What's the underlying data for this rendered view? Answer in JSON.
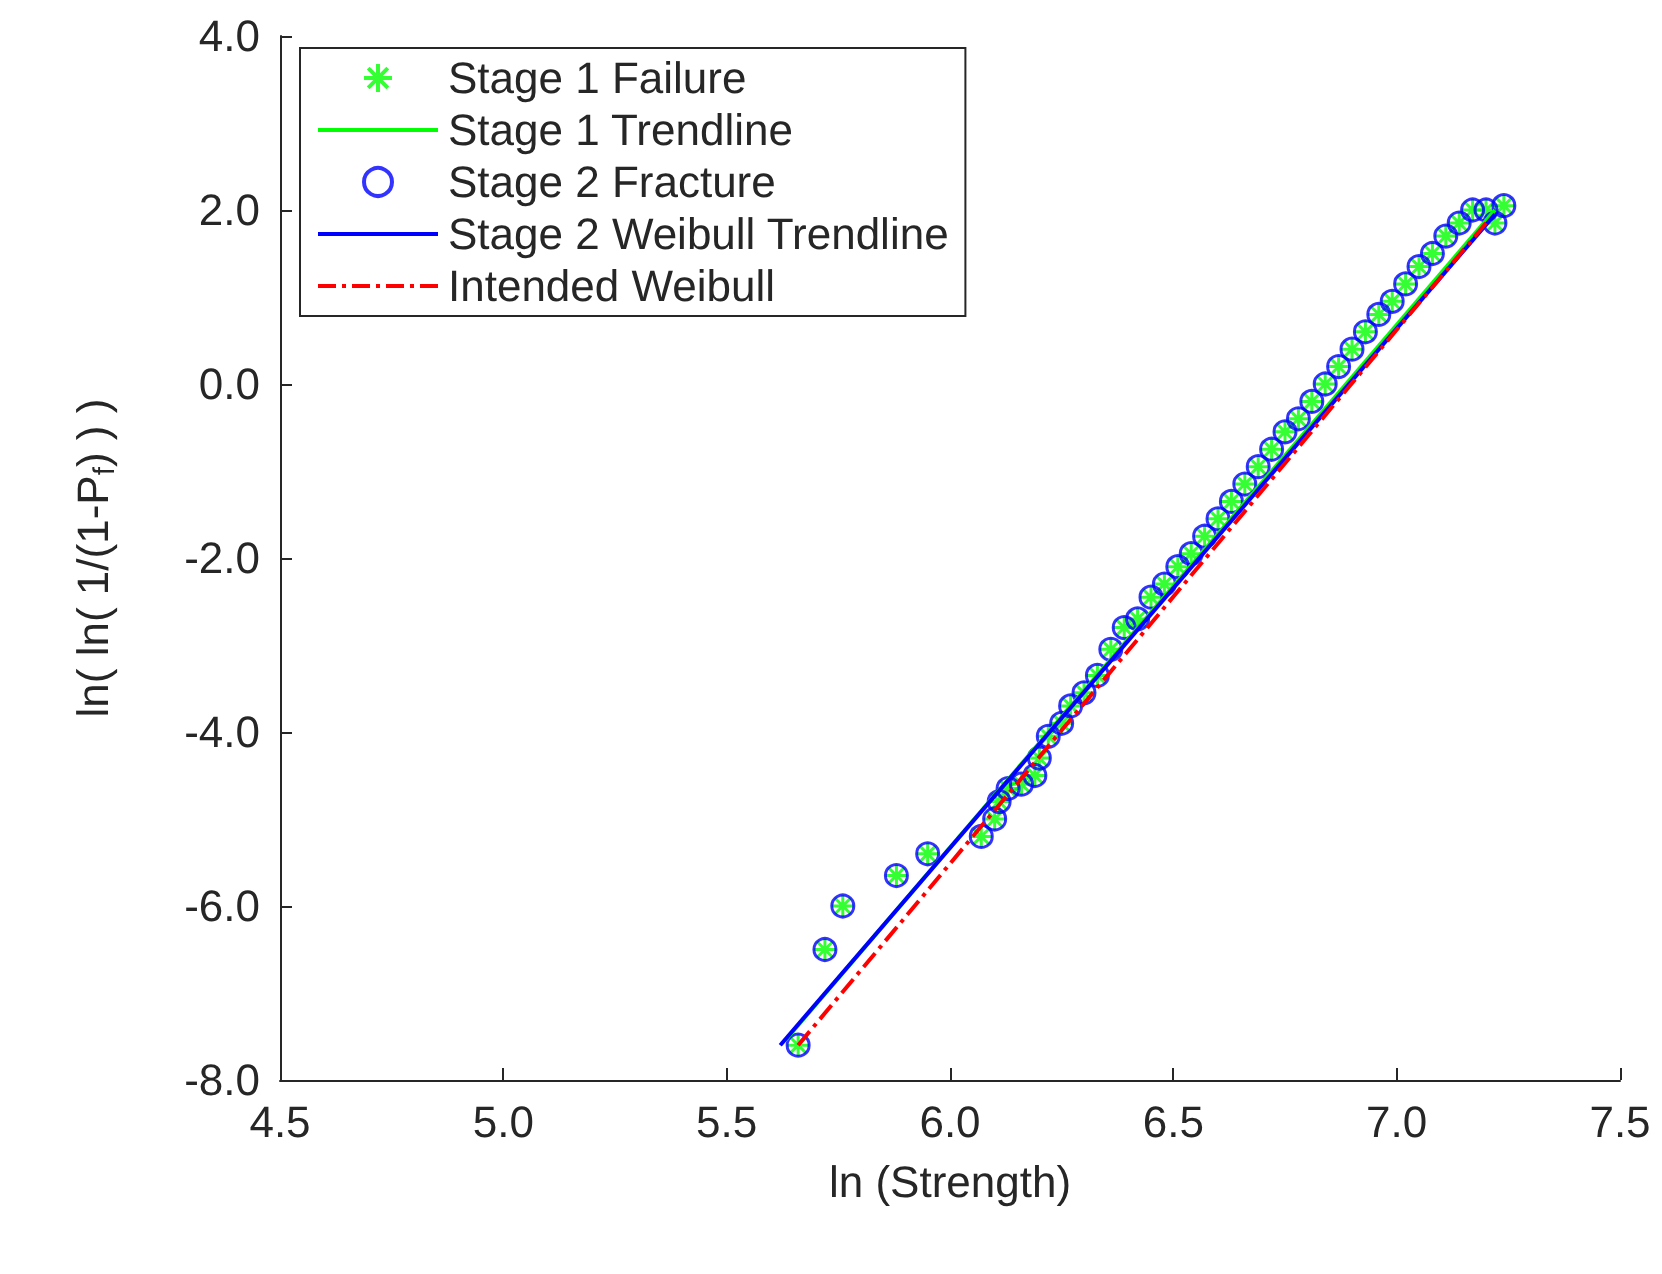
{
  "chart_data": {
    "type": "scatter",
    "xlabel": "ln (Strength)",
    "ylabel": "ln( ln( 1/(1-P$_{f}$) ) )",
    "xlim": [
      4.5,
      7.5
    ],
    "ylim": [
      -8.0,
      4.0
    ],
    "xticks": [
      {
        "value": 4.5,
        "label": "4.5"
      },
      {
        "value": 5.0,
        "label": "5.0"
      },
      {
        "value": 5.5,
        "label": "5.5"
      },
      {
        "value": 6.0,
        "label": "6.0"
      },
      {
        "value": 6.5,
        "label": "6.5"
      },
      {
        "value": 7.0,
        "label": "7.0"
      },
      {
        "value": 7.5,
        "label": "7.5"
      }
    ],
    "yticks": [
      {
        "value": -8.0,
        "label": "-8.0"
      },
      {
        "value": -6.0,
        "label": "-6.0"
      },
      {
        "value": -4.0,
        "label": "-4.0"
      },
      {
        "value": -2.0,
        "label": "-2.0"
      },
      {
        "value": 0.0,
        "label": "0.0"
      },
      {
        "value": 2.0,
        "label": "2.0"
      },
      {
        "value": 4.0,
        "label": "4.0"
      }
    ],
    "grid": false,
    "legend": "top left",
    "series": [
      {
        "name": "Stage 1 Failure",
        "marker": "cross",
        "color": "#00ff00",
        "x": [
          5.66,
          5.72,
          5.76,
          5.88,
          5.95,
          6.07,
          6.1,
          6.11,
          6.13,
          6.16,
          6.19,
          6.2,
          6.22,
          6.25,
          6.27,
          6.3,
          6.33,
          6.36,
          6.39,
          6.42,
          6.45,
          6.48,
          6.51,
          6.54,
          6.57,
          6.6,
          6.63,
          6.66,
          6.69,
          6.72,
          6.75,
          6.78,
          6.81,
          6.84,
          6.87,
          6.9,
          6.93,
          6.96,
          6.99,
          7.02,
          7.05,
          7.08,
          7.11,
          7.14,
          7.17,
          7.2,
          7.22,
          7.24
        ],
        "values": [
          -7.6,
          -6.5,
          -6.0,
          -5.65,
          -5.4,
          -5.2,
          -5.0,
          -4.8,
          -4.65,
          -4.6,
          -4.5,
          -4.3,
          -4.05,
          -3.9,
          -3.7,
          -3.55,
          -3.35,
          -3.05,
          -2.8,
          -2.7,
          -2.45,
          -2.3,
          -2.1,
          -1.95,
          -1.75,
          -1.55,
          -1.35,
          -1.15,
          -0.95,
          -0.75,
          -0.55,
          -0.4,
          -0.2,
          0.0,
          0.2,
          0.4,
          0.6,
          0.8,
          0.95,
          1.15,
          1.35,
          1.5,
          1.7,
          1.85,
          2.0,
          2.0,
          1.85,
          2.05
        ]
      },
      {
        "name": "Stage 1 Trendline",
        "type": "line",
        "marker": "none",
        "line_style": "solid",
        "color": "#00ff00",
        "x": [
          5.63,
          7.22
        ],
        "values": [
          -7.55,
          2.0
        ]
      },
      {
        "name": "Stage 2 Fracture",
        "marker": "circle",
        "color": "#0000ff",
        "x": [
          5.66,
          5.72,
          5.76,
          5.88,
          5.95,
          6.07,
          6.1,
          6.11,
          6.13,
          6.16,
          6.19,
          6.2,
          6.22,
          6.25,
          6.27,
          6.3,
          6.33,
          6.36,
          6.39,
          6.42,
          6.45,
          6.48,
          6.51,
          6.54,
          6.57,
          6.6,
          6.63,
          6.66,
          6.69,
          6.72,
          6.75,
          6.78,
          6.81,
          6.84,
          6.87,
          6.9,
          6.93,
          6.96,
          6.99,
          7.02,
          7.05,
          7.08,
          7.11,
          7.14,
          7.17,
          7.2,
          7.22,
          7.24
        ],
        "values": [
          -7.6,
          -6.5,
          -6.0,
          -5.65,
          -5.4,
          -5.2,
          -5.0,
          -4.8,
          -4.65,
          -4.6,
          -4.5,
          -4.3,
          -4.05,
          -3.9,
          -3.7,
          -3.55,
          -3.35,
          -3.05,
          -2.8,
          -2.7,
          -2.45,
          -2.3,
          -2.1,
          -1.95,
          -1.75,
          -1.55,
          -1.35,
          -1.15,
          -0.95,
          -0.75,
          -0.55,
          -0.4,
          -0.2,
          0.0,
          0.2,
          0.4,
          0.6,
          0.8,
          0.95,
          1.15,
          1.35,
          1.5,
          1.7,
          1.85,
          2.0,
          2.0,
          1.85,
          2.05
        ]
      },
      {
        "name": "Stage 2 Weibull Trendline",
        "type": "line",
        "marker": "none",
        "line_style": "solid",
        "color": "#0000ff",
        "x": [
          5.62,
          7.22
        ],
        "values": [
          -7.6,
          1.95
        ]
      },
      {
        "name": "Intended Weibull",
        "type": "line",
        "marker": "none",
        "line_style": "dashdot",
        "color": "#ff0000",
        "x": [
          5.66,
          7.2
        ],
        "values": [
          -7.6,
          1.85
        ]
      }
    ]
  }
}
